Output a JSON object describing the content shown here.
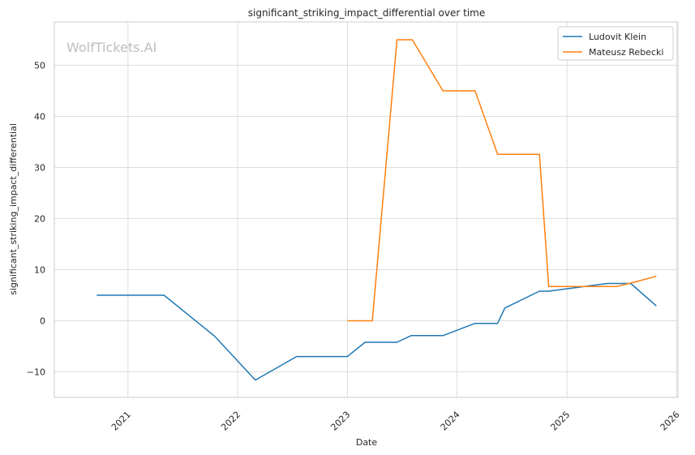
{
  "chart_data": {
    "type": "line",
    "title": "significant_striking_impact_differential over time",
    "xlabel": "Date",
    "ylabel": "significant_striking_impact_differential",
    "watermark": "WolfTickets.AI",
    "xlim": [
      "2020-05-01",
      "2026-01-05"
    ],
    "ylim": [
      -15,
      58.5
    ],
    "x_ticks": [
      "2021",
      "2022",
      "2023",
      "2024",
      "2025",
      "2026"
    ],
    "y_ticks": [
      -10,
      0,
      10,
      20,
      30,
      40,
      50
    ],
    "grid": true,
    "legend_position": "top-right",
    "series": [
      {
        "name": "Ludovit Klein",
        "color": "#1f77b4",
        "points": [
          [
            "2020-09-19",
            5
          ],
          [
            "2021-05-01",
            5
          ],
          [
            "2021-10-16",
            -3
          ],
          [
            "2022-03-01",
            -11.6
          ],
          [
            "2022-07-16",
            -7
          ],
          [
            "2023-01-01",
            -7
          ],
          [
            "2023-03-01",
            -4.2
          ],
          [
            "2023-06-15",
            -4.2
          ],
          [
            "2023-08-01",
            -2.9
          ],
          [
            "2023-11-15",
            -2.9
          ],
          [
            "2024-03-01",
            -0.5
          ],
          [
            "2024-05-15",
            -0.5
          ],
          [
            "2024-06-08",
            2.5
          ],
          [
            "2024-10-01",
            5.8
          ],
          [
            "2024-11-01",
            5.8
          ],
          [
            "2025-05-15",
            7.3
          ],
          [
            "2025-08-01",
            7.3
          ],
          [
            "2025-10-25",
            2.9
          ]
        ]
      },
      {
        "name": "Mateusz Rebecki",
        "color": "#ff7f0e",
        "points": [
          [
            "2023-01-01",
            0
          ],
          [
            "2023-03-25",
            0
          ],
          [
            "2023-06-15",
            55
          ],
          [
            "2023-08-05",
            55
          ],
          [
            "2023-11-15",
            45
          ],
          [
            "2024-03-01",
            45
          ],
          [
            "2024-05-15",
            32.6
          ],
          [
            "2024-10-01",
            32.6
          ],
          [
            "2024-11-01",
            6.7
          ],
          [
            "2025-06-15",
            6.7
          ],
          [
            "2025-08-15",
            7.6
          ],
          [
            "2025-10-25",
            8.7
          ]
        ]
      }
    ]
  }
}
